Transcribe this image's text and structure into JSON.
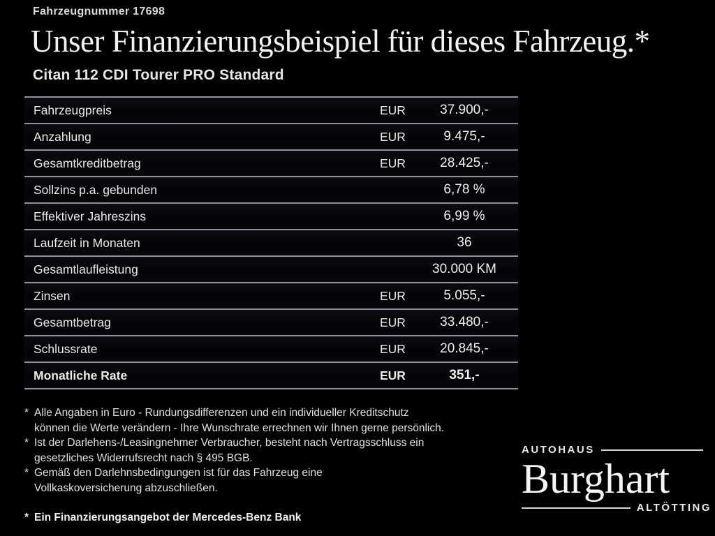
{
  "header": {
    "vehicle_number": "Fahrzeugnummer 17698",
    "title": "Unser Finanzierungsbeispiel für dieses Fahrzeug.*",
    "model": "Citan 112 CDI Tourer PRO Standard"
  },
  "table": {
    "rows": [
      {
        "label": "Fahrzeugpreis",
        "currency": "EUR",
        "value": "37.900,-",
        "bold": false
      },
      {
        "label": "Anzahlung",
        "currency": "EUR",
        "value": "9.475,-",
        "bold": false
      },
      {
        "label": "Gesamtkreditbetrag",
        "currency": "EUR",
        "value": "28.425,-",
        "bold": false
      },
      {
        "label": "Sollzins p.a. gebunden",
        "currency": "",
        "value": "6,78 %",
        "bold": false
      },
      {
        "label": "Effektiver Jahreszins",
        "currency": "",
        "value": "6,99 %",
        "bold": false
      },
      {
        "label": "Laufzeit in Monaten",
        "currency": "",
        "value": "36",
        "bold": false
      },
      {
        "label": "Gesamtlaufleistung",
        "currency": "",
        "value": "30.000 KM",
        "bold": false
      },
      {
        "label": "Zinsen",
        "currency": "EUR",
        "value": "5.055,-",
        "bold": false
      },
      {
        "label": "Gesamtbetrag",
        "currency": "EUR",
        "value": "33.480,-",
        "bold": false
      },
      {
        "label": "Schlussrate",
        "currency": "EUR",
        "value": "20.845,-",
        "bold": false
      },
      {
        "label": "Monatliche Rate",
        "currency": "EUR",
        "value": "351,-",
        "bold": true
      }
    ]
  },
  "footnotes": [
    {
      "marker": "*",
      "lines": [
        "Alle Angaben in Euro - Rundungsdifferenzen und ein individueller Kreditschutz",
        "können die Werte verändern - Ihre Wunschrate errechnen wir Ihnen gerne persönlich."
      ],
      "bold": false
    },
    {
      "marker": "*",
      "lines": [
        "Ist der Darlehens-/Leasingnehmer Verbraucher, besteht nach Vertragsschluss ein",
        "gesetzliches Widerrufsrecht nach § 495 BGB."
      ],
      "bold": false
    },
    {
      "marker": "*",
      "lines": [
        "Gemäß den Darlehnsbedingungen ist für das Fahrzeug eine",
        "Vollkaskoversicherung abzuschließen."
      ],
      "bold": false
    },
    {
      "marker": "*",
      "lines": [
        "Ein Finanzierungsangebot der Mercedes-Benz Bank"
      ],
      "bold": true
    }
  ],
  "logo": {
    "top": "AUTOHAUS",
    "name": "Burghart",
    "bottom": "ALTÖTTING"
  },
  "colors": {
    "background": "#000000",
    "text": "#e9e9e9",
    "separator": "#8e939d"
  }
}
